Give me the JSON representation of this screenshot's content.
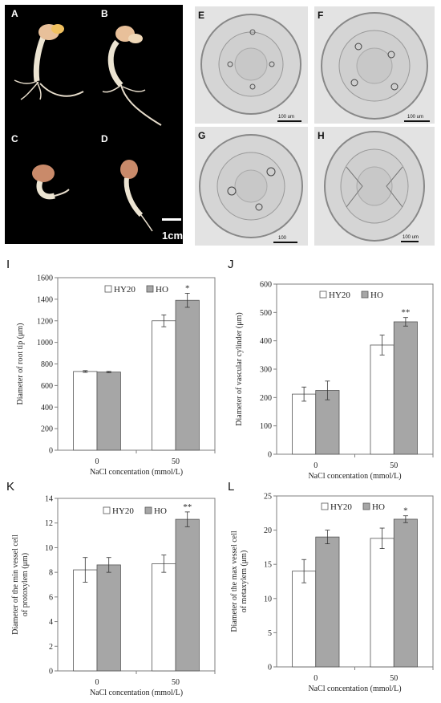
{
  "photos": {
    "seedling_labels": [
      "A",
      "B",
      "C",
      "D"
    ],
    "section_labels": [
      "E",
      "F",
      "G",
      "H"
    ],
    "seedling_scale": "1cm",
    "section_scales": [
      "100 um",
      "100 um",
      "100",
      "100 um"
    ]
  },
  "colors": {
    "HY20": "#ffffff",
    "HO": "#a6a6a6",
    "axis": "#7f7f7f"
  },
  "chart_data": [
    {
      "panel": "I",
      "type": "bar",
      "categories": [
        "0",
        "50"
      ],
      "series": [
        {
          "name": "HY20",
          "values": [
            730,
            1200
          ],
          "errors": [
            8,
            55
          ]
        },
        {
          "name": "HO",
          "values": [
            725,
            1390
          ],
          "errors": [
            6,
            65
          ]
        }
      ],
      "significance": [
        "",
        "*"
      ],
      "xlabel": "NaCl concentation (mmol/L)",
      "ylabel": "Diameter of root tip (μm)",
      "ylim": [
        0,
        1600
      ],
      "yticks": [
        0,
        200,
        400,
        600,
        800,
        1000,
        1200,
        1400,
        1600
      ],
      "legend": "top-left"
    },
    {
      "panel": "J",
      "type": "bar",
      "categories": [
        "0",
        "50"
      ],
      "series": [
        {
          "name": "HY20",
          "values": [
            212,
            385
          ],
          "errors": [
            25,
            35
          ]
        },
        {
          "name": "HO",
          "values": [
            225,
            467
          ],
          "errors": [
            33,
            15
          ]
        }
      ],
      "significance": [
        "",
        "**"
      ],
      "xlabel": "NaCl concentation (mmol/L)",
      "ylabel": "Diameter of vascular cylinder (μm)",
      "ylim": [
        0,
        600
      ],
      "yticks": [
        0,
        100,
        200,
        300,
        400,
        500,
        600
      ],
      "legend": "top-left"
    },
    {
      "panel": "K",
      "type": "bar",
      "categories": [
        "0",
        "50"
      ],
      "series": [
        {
          "name": "HY20",
          "values": [
            8.2,
            8.7
          ],
          "errors": [
            1.0,
            0.7
          ]
        },
        {
          "name": "HO",
          "values": [
            8.6,
            12.3
          ],
          "errors": [
            0.6,
            0.6
          ]
        }
      ],
      "significance": [
        "",
        "**"
      ],
      "xlabel": "NaCl concentation (mmol/L)",
      "ylabel": "Diameter of the min vessel cell of protoxylem (μm)",
      "ylim": [
        0,
        14
      ],
      "yticks": [
        0,
        2,
        4,
        6,
        8,
        10,
        12,
        14
      ],
      "legend": "top-left"
    },
    {
      "panel": "L",
      "type": "bar",
      "categories": [
        "0",
        "50"
      ],
      "series": [
        {
          "name": "HY20",
          "values": [
            14.0,
            18.8
          ],
          "errors": [
            1.7,
            1.5
          ]
        },
        {
          "name": "HO",
          "values": [
            19.0,
            21.6
          ],
          "errors": [
            1.0,
            0.5
          ]
        }
      ],
      "significance": [
        "",
        "*"
      ],
      "xlabel": "NaCl concentation (mmol/L)",
      "ylabel": "Diameter of the max vessel cell of metaxylem (μm)",
      "ylim": [
        0,
        25
      ],
      "yticks": [
        0,
        5,
        10,
        15,
        20,
        25
      ],
      "legend": "top-left"
    }
  ]
}
